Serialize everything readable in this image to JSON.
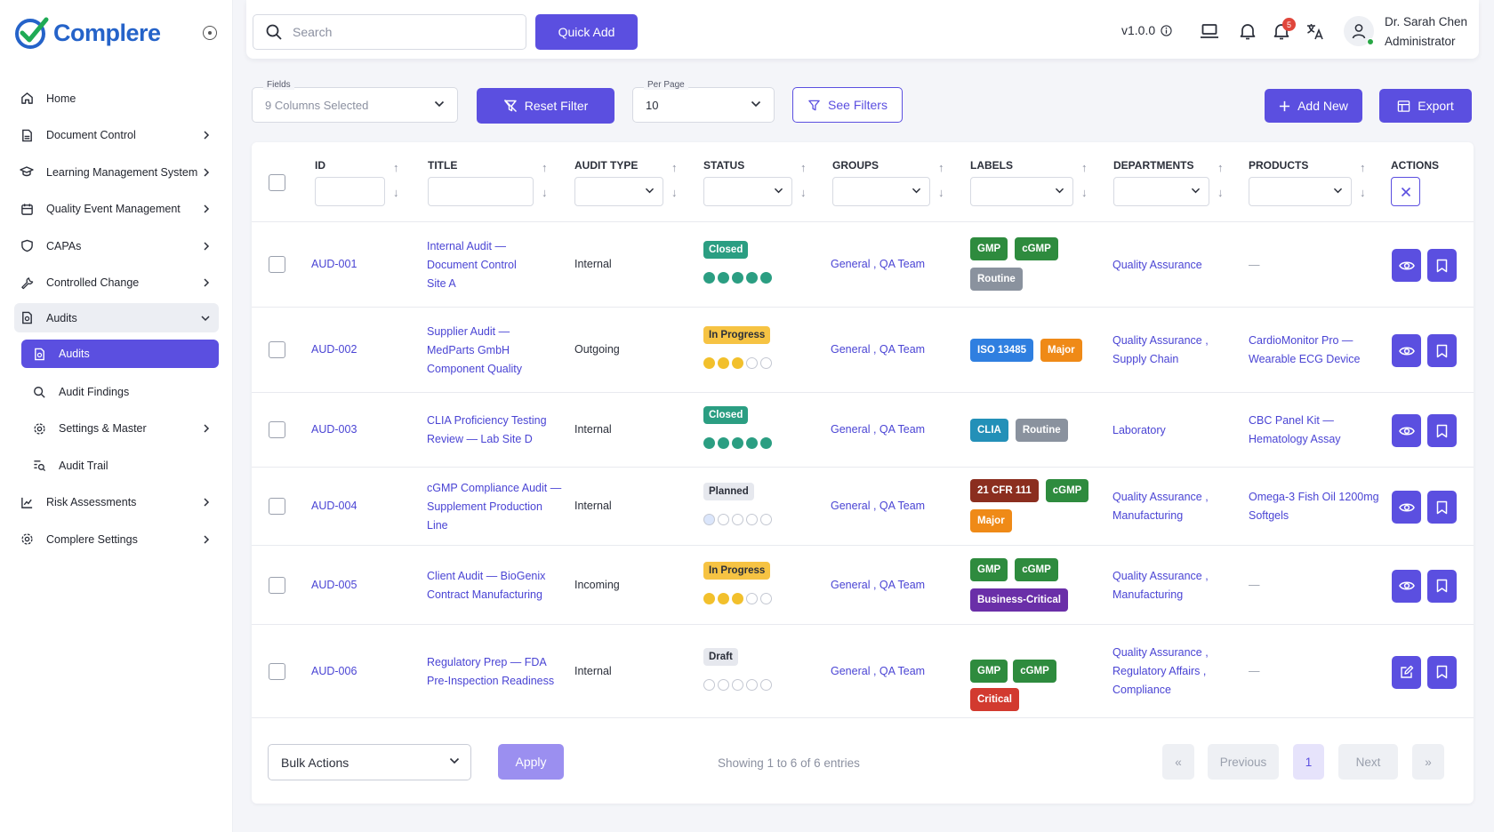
{
  "app": {
    "name": "Complere"
  },
  "sidebar": {
    "items": [
      {
        "label": "Home",
        "icon": "home-icon"
      },
      {
        "label": "Document Control",
        "icon": "document-icon"
      },
      {
        "label": "Learning Management System",
        "icon": "graduation-cap-icon"
      },
      {
        "label": "Quality Event Management",
        "icon": "calendar-icon"
      },
      {
        "label": "CAPAs",
        "icon": "shield-icon"
      },
      {
        "label": "Controlled Change",
        "icon": "wrench-icon"
      },
      {
        "label": "Audits",
        "icon": "audit-icon"
      },
      {
        "label": "Risk Assessments",
        "icon": "chart-icon"
      },
      {
        "label": "Complere Settings",
        "icon": "gear-icon"
      }
    ],
    "audits_sub": [
      {
        "label": "Audits",
        "icon": "audit-icon"
      },
      {
        "label": "Audit Findings",
        "icon": "search-icon"
      },
      {
        "label": "Settings & Master",
        "icon": "gear-icon"
      },
      {
        "label": "Audit Trail",
        "icon": "list-search-icon"
      }
    ]
  },
  "topbar": {
    "search_placeholder": "Search",
    "quick_add": "Quick Add",
    "version": "v1.0.0",
    "notification_count": "5",
    "user_name": "Dr. Sarah Chen",
    "user_role": "Administrator"
  },
  "filters": {
    "fields_label": "Fields",
    "fields_value": "9 Columns Selected",
    "reset": "Reset Filter",
    "per_page_label": "Per Page",
    "per_page_value": "10",
    "see_filters": "See Filters",
    "add_new": "Add New",
    "export": "Export"
  },
  "table": {
    "headers": [
      "ID",
      "TITLE",
      "AUDIT TYPE",
      "STATUS",
      "GROUPS",
      "LABELS",
      "DEPARTMENTS",
      "PRODUCTS",
      "ACTIONS"
    ],
    "rows": [
      {
        "id": "AUD-001",
        "title": [
          "Internal Audit —",
          "Document Control",
          "Site A"
        ],
        "type": "Internal",
        "status": "Closed",
        "progress": 5,
        "groups": "General , QA Team",
        "labels": [
          {
            "t": "GMP",
            "c": "#2e8b3e"
          },
          {
            "t": "cGMP",
            "c": "#2e8b3e"
          },
          {
            "t": "Routine",
            "c": "#8a929e"
          }
        ],
        "departments": [
          "Quality Assurance"
        ],
        "products": [
          "—"
        ],
        "action": "view"
      },
      {
        "id": "AUD-002",
        "title": [
          "Supplier Audit —",
          "MedParts GmbH",
          "Component Quality"
        ],
        "type": "Outgoing",
        "status": "In Progress",
        "progress": 3,
        "groups": "General , QA Team",
        "labels": [
          {
            "t": "ISO 13485",
            "c": "#2f7fe0"
          },
          {
            "t": "Major",
            "c": "#ef8a17"
          }
        ],
        "departments": [
          "Quality Assurance ,",
          "Supply Chain"
        ],
        "products": [
          "CardioMonitor Pro —",
          "Wearable ECG Device"
        ],
        "action": "view"
      },
      {
        "id": "AUD-003",
        "title": [
          "CLIA Proficiency Testing",
          "Review — Lab Site D"
        ],
        "type": "Internal",
        "status": "Closed",
        "progress": 5,
        "groups": "General , QA Team",
        "labels": [
          {
            "t": "CLIA",
            "c": "#2390b8"
          },
          {
            "t": "Routine",
            "c": "#8a929e"
          }
        ],
        "departments": [
          "Laboratory"
        ],
        "products": [
          "CBC Panel Kit —",
          "Hematology Assay"
        ],
        "action": "view"
      },
      {
        "id": "AUD-004",
        "title": [
          "cGMP Compliance Audit —",
          "Supplement Production",
          "Line"
        ],
        "type": "Internal",
        "status": "Planned",
        "progress": 0,
        "groups": "General , QA Team",
        "labels": [
          {
            "t": "21 CFR 111",
            "c": "#8b2e1f"
          },
          {
            "t": "cGMP",
            "c": "#2e8b3e"
          },
          {
            "t": "Major",
            "c": "#ef8a17"
          }
        ],
        "departments": [
          "Quality Assurance ,",
          "Manufacturing"
        ],
        "products": [
          "Omega-3 Fish Oil 1200mg",
          "Softgels"
        ],
        "action": "view"
      },
      {
        "id": "AUD-005",
        "title": [
          "Client Audit — BioGenix",
          "Contract Manufacturing"
        ],
        "type": "Incoming",
        "status": "In Progress",
        "progress": 3,
        "groups": "General , QA Team",
        "labels": [
          {
            "t": "GMP",
            "c": "#2e8b3e"
          },
          {
            "t": "cGMP",
            "c": "#2e8b3e"
          },
          {
            "t": "Business-Critical",
            "c": "#6a2fa8"
          }
        ],
        "departments": [
          "Quality Assurance ,",
          "Manufacturing"
        ],
        "products": [
          "—"
        ],
        "action": "view"
      },
      {
        "id": "AUD-006",
        "title": [
          "Regulatory Prep — FDA",
          "Pre-Inspection Readiness"
        ],
        "type": "Internal",
        "status": "Draft",
        "progress": 0,
        "groups": "General , QA Team",
        "labels": [
          {
            "t": "GMP",
            "c": "#2e8b3e"
          },
          {
            "t": "cGMP",
            "c": "#2e8b3e"
          },
          {
            "t": "Critical",
            "c": "#d23a2f"
          }
        ],
        "departments": [
          "Quality Assurance ,",
          "Regulatory Affairs ,",
          "Compliance"
        ],
        "products": [
          "—"
        ],
        "action": "edit"
      }
    ]
  },
  "footer": {
    "bulk_actions": "Bulk Actions",
    "apply": "Apply",
    "showing": "Showing 1 to 6 of 6 entries",
    "first": "«",
    "previous": "Previous",
    "page": "1",
    "next": "Next",
    "last": "»"
  }
}
